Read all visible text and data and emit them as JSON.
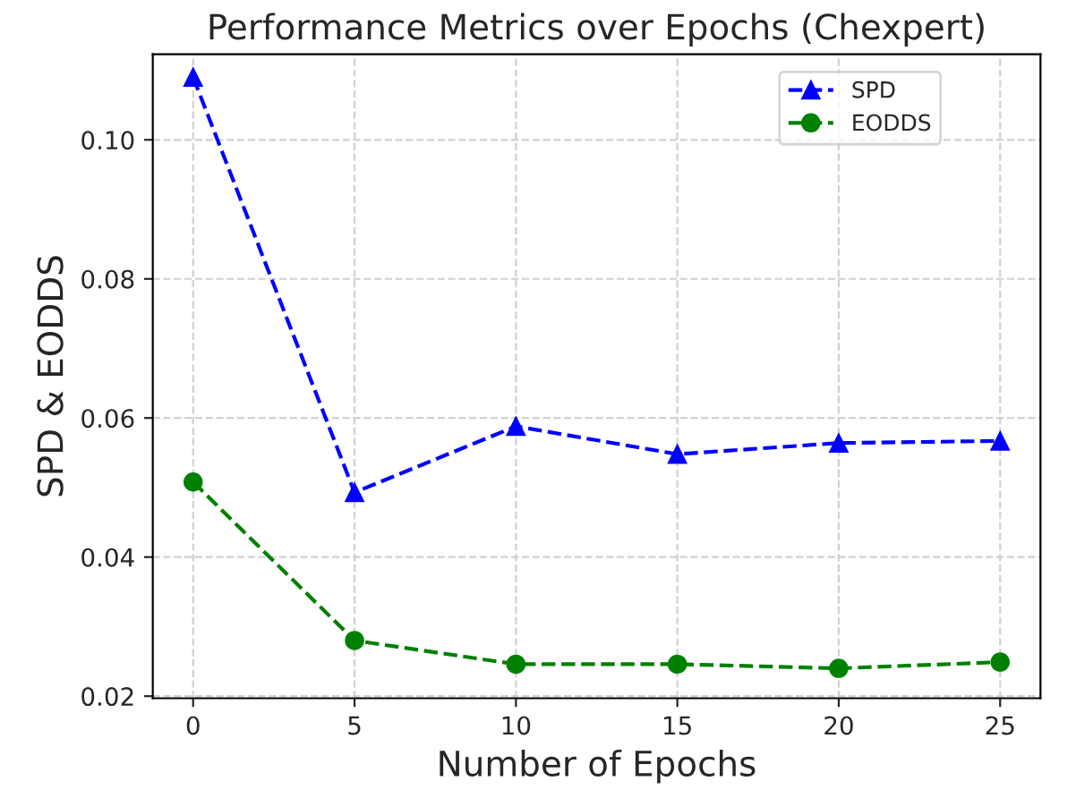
{
  "chart_data": {
    "type": "line",
    "title": "Performance Metrics over Epochs (Chexpert)",
    "xlabel": "Number of Epochs",
    "ylabel": "SPD & EODDS",
    "x": [
      0,
      5,
      10,
      15,
      20,
      25
    ],
    "series": [
      {
        "name": "SPD",
        "color": "#0000ff",
        "marker": "triangle",
        "values": [
          0.109,
          0.0493,
          0.0588,
          0.0548,
          0.0564,
          0.0567
        ]
      },
      {
        "name": "EODDS",
        "color": "#008000",
        "marker": "circle",
        "values": [
          0.0508,
          0.028,
          0.0246,
          0.0246,
          0.024,
          0.0249
        ]
      }
    ],
    "xlim": [
      -1.25,
      26.25
    ],
    "xticks": [
      0,
      5,
      10,
      15,
      20,
      25
    ],
    "ylim": [
      0.0197,
      0.1123
    ],
    "yticks": [
      {
        "value": 0.02,
        "label": "0.02"
      },
      {
        "value": 0.04,
        "label": "0.04"
      },
      {
        "value": 0.06,
        "label": "0.06"
      },
      {
        "value": 0.08,
        "label": "0.08"
      },
      {
        "value": 0.1,
        "label": "0.10"
      }
    ],
    "grid": true,
    "legend": "top right",
    "line_style": "dashed"
  }
}
